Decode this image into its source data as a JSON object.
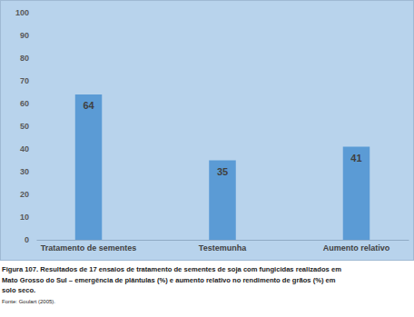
{
  "chart_data": {
    "type": "bar",
    "categories": [
      "Tratamento de sementes",
      "Testemunha",
      "Aumento relativo"
    ],
    "values": [
      64,
      35,
      41
    ],
    "color": "#5b9bd5",
    "ylim": [
      0,
      100
    ],
    "yticks": [
      0,
      10,
      20,
      30,
      40,
      50,
      60,
      70,
      80,
      90,
      100
    ],
    "grid": false,
    "data_labels": true,
    "caption": [
      "Figura 107. Resultados de 17 ensaios de tratamento de sementes de soja com fungicidas realizados em",
      "Mato Grosso do Sul – emergência de plântulas (%) e aumento relativo no rendimento de grãos (%) em",
      "solo seco."
    ],
    "source": "Fonte: Goulart (2005)."
  }
}
